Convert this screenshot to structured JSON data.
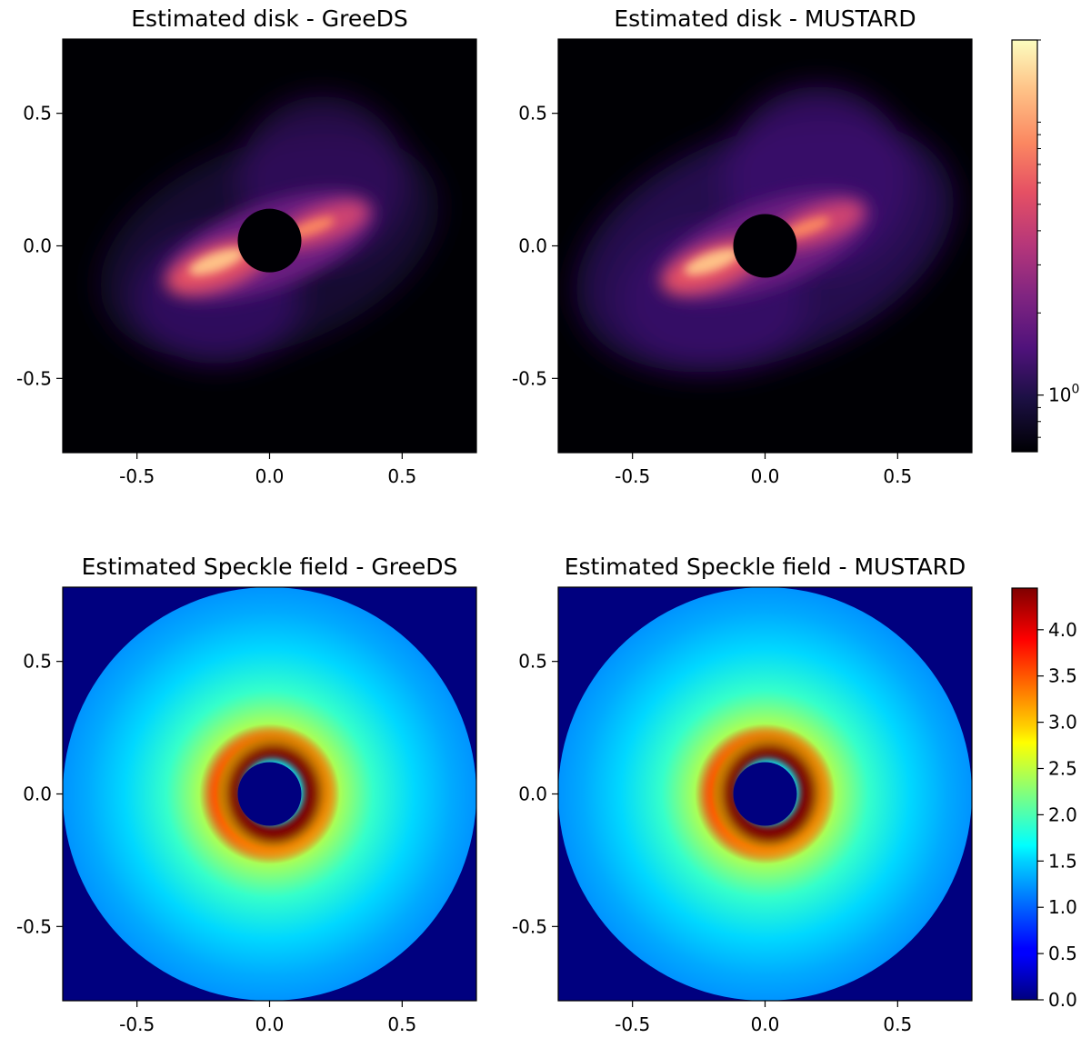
{
  "chart_data": [
    {
      "type": "heatmap",
      "title": "Estimated disk - GreeDS",
      "xlim": [
        -0.78,
        0.78
      ],
      "ylim": [
        -0.78,
        0.78
      ],
      "xticks": [
        -0.5,
        0.0,
        0.5
      ],
      "xtick_labels": [
        "-0.5",
        "0.0",
        "0.5"
      ],
      "yticks": [
        0.5,
        0.0,
        -0.5
      ],
      "ytick_labels": [
        "0.5",
        "0.0",
        "-0.5"
      ],
      "colormap": "magma",
      "scale": "log",
      "features": {
        "mask_radius": 0.12,
        "mask_center": [
          0.0,
          0.02
        ],
        "disk_position_angle_deg": 20,
        "disk_peak_left": [
          -0.2,
          -0.08
        ],
        "disk_peak_right": [
          0.2,
          0.08
        ],
        "halo_extent": 0.7
      }
    },
    {
      "type": "heatmap",
      "title": "Estimated disk - MUSTARD",
      "xlim": [
        -0.78,
        0.78
      ],
      "ylim": [
        -0.78,
        0.78
      ],
      "xticks": [
        -0.5,
        0.0,
        0.5
      ],
      "xtick_labels": [
        "-0.5",
        "0.0",
        "0.5"
      ],
      "yticks": [
        0.5,
        0.0,
        -0.5
      ],
      "ytick_labels": [
        "0.5",
        "0.0",
        "-0.5"
      ],
      "colormap": "magma",
      "scale": "log",
      "colorbar": {
        "scale": "log",
        "tick_label_base": "10",
        "tick_label_exp": "0",
        "tick_value": 1.0
      },
      "features": {
        "mask_radius": 0.12,
        "mask_center": [
          0.0,
          0.0
        ],
        "disk_position_angle_deg": 20,
        "disk_peak_left": [
          -0.2,
          -0.08
        ],
        "disk_peak_right": [
          0.2,
          0.08
        ],
        "halo_extent": 0.78
      }
    },
    {
      "type": "heatmap",
      "title": "Estimated Speckle field - GreeDS",
      "xlim": [
        -0.78,
        0.78
      ],
      "ylim": [
        -0.78,
        0.78
      ],
      "xticks": [
        -0.5,
        0.0,
        0.5
      ],
      "xtick_labels": [
        "-0.5",
        "0.0",
        "0.5"
      ],
      "yticks": [
        0.5,
        0.0,
        -0.5
      ],
      "ytick_labels": [
        "0.5",
        "0.0",
        "-0.5"
      ],
      "colormap": "jet",
      "vlim": [
        0.0,
        4.45
      ],
      "features": {
        "inner_mask_radius": 0.12,
        "outer_radius": 0.78,
        "ring_peak_radius": 0.17,
        "ring_peak_value": 4.45,
        "outer_value": 1.2
      }
    },
    {
      "type": "heatmap",
      "title": "Estimated Speckle field - MUSTARD",
      "xlim": [
        -0.78,
        0.78
      ],
      "ylim": [
        -0.78,
        0.78
      ],
      "xticks": [
        -0.5,
        0.0,
        0.5
      ],
      "xtick_labels": [
        "-0.5",
        "0.0",
        "0.5"
      ],
      "yticks": [
        0.5,
        0.0,
        -0.5
      ],
      "ytick_labels": [
        "0.5",
        "0.0",
        "-0.5"
      ],
      "colormap": "jet",
      "vlim": [
        0.0,
        4.45
      ],
      "colorbar": {
        "ticks": [
          0.0,
          0.5,
          1.0,
          1.5,
          2.0,
          2.5,
          3.0,
          3.5,
          4.0
        ],
        "tick_labels": [
          "0.0",
          "0.5",
          "1.0",
          "1.5",
          "2.0",
          "2.5",
          "3.0",
          "3.5",
          "4.0"
        ]
      },
      "features": {
        "inner_mask_radius": 0.12,
        "outer_radius": 0.78,
        "ring_peak_radius": 0.17,
        "ring_peak_value": 4.45,
        "outer_value": 1.2
      }
    }
  ]
}
